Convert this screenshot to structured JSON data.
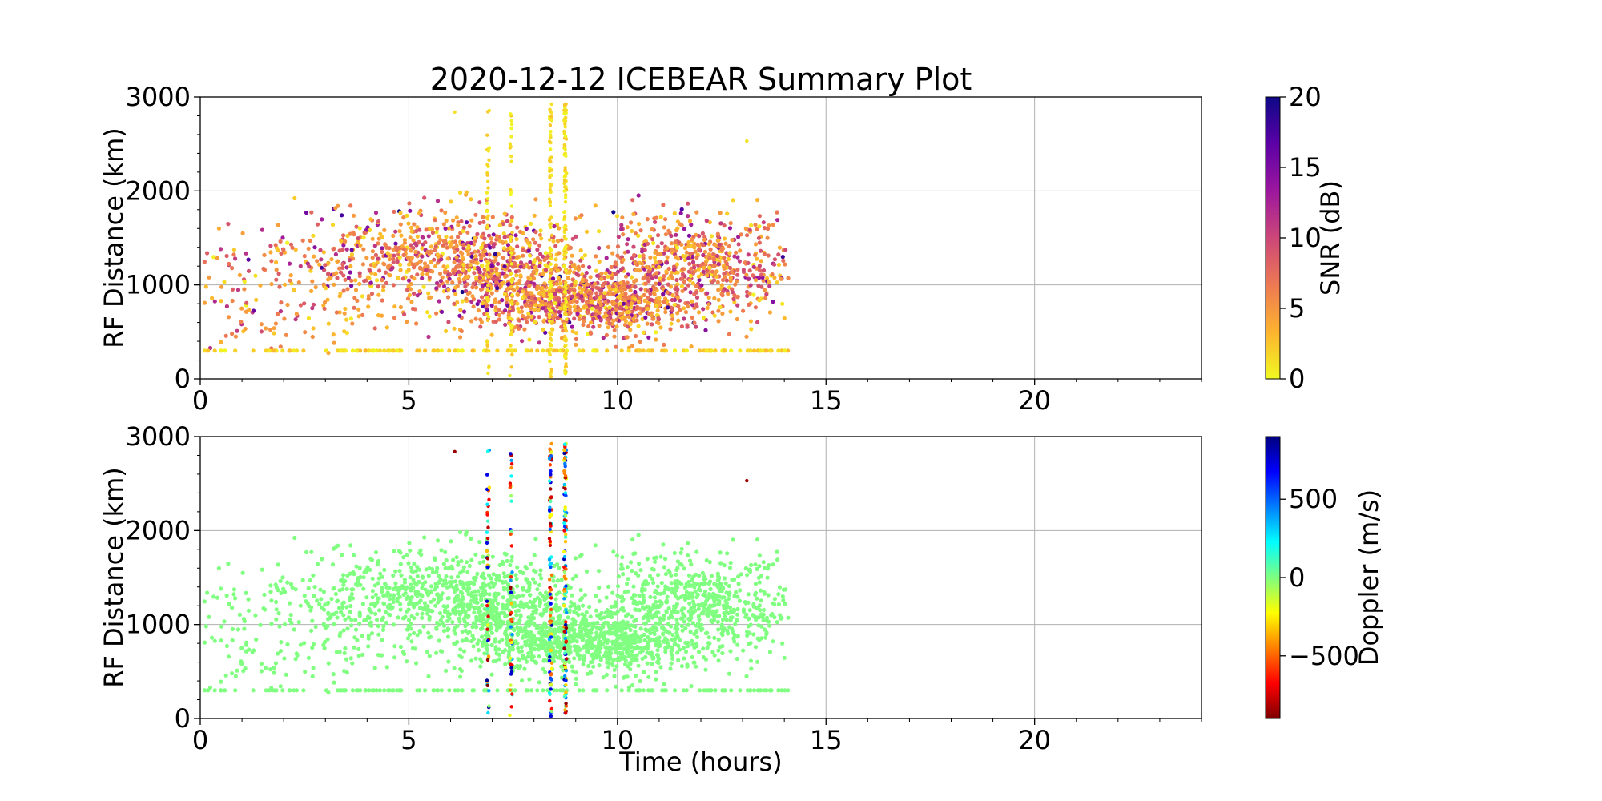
{
  "chart_data": [
    {
      "type": "scatter",
      "title": "2020-12-12 ICEBEAR Summary Plot",
      "ylabel": "RF Distance (km)",
      "xlabel": "",
      "xlim": [
        0,
        24
      ],
      "ylim": [
        0,
        3000
      ],
      "xticks": [
        0,
        5,
        10,
        15,
        20
      ],
      "yticks": [
        0,
        1000,
        2000,
        3000
      ],
      "grid": true,
      "colorbar": {
        "label": "SNR (dB)",
        "range": [
          0,
          20
        ],
        "ticks": [
          0,
          5,
          10,
          15,
          20
        ],
        "colormap": "plasma_r",
        "stops": [
          "#f0f921",
          "#fdb32f",
          "#ed7953",
          "#cc4778",
          "#9c179e",
          "#5c01a6",
          "#0d0887"
        ]
      },
      "data_extent": {
        "t_start": 0,
        "t_end": 14.1
      },
      "clusters": [
        {
          "t_center": 6.8,
          "t_spread": 1.2,
          "r_center": 1250,
          "r_spread": 280,
          "weight": 0.22
        },
        {
          "t_center": 8.5,
          "t_spread": 1.0,
          "r_center": 850,
          "r_spread": 160,
          "weight": 0.22
        },
        {
          "t_center": 12.0,
          "t_spread": 1.2,
          "r_center": 1200,
          "r_spread": 300,
          "weight": 0.26
        },
        {
          "t_center": 4.5,
          "t_spread": 1.2,
          "r_center": 1300,
          "r_spread": 280,
          "weight": 0.12
        },
        {
          "t_center": 10.2,
          "t_spread": 0.7,
          "r_center": 750,
          "r_spread": 150,
          "weight": 0.1
        },
        {
          "t_center": 2.0,
          "t_spread": 1.5,
          "r_center": 1000,
          "r_spread": 400,
          "weight": 0.08
        }
      ],
      "baseline_range_km": 300,
      "vertical_streaks_hours": [
        6.9,
        7.45,
        8.4,
        8.75
      ]
    },
    {
      "type": "scatter",
      "title": "",
      "ylabel": "RF Distance (km)",
      "xlabel": "Time (hours)",
      "xlim": [
        0,
        24
      ],
      "ylim": [
        0,
        3000
      ],
      "xticks": [
        0,
        5,
        10,
        15,
        20
      ],
      "yticks": [
        0,
        1000,
        2000,
        3000
      ],
      "grid": true,
      "colorbar": {
        "label": "Doppler (m/s)",
        "range": [
          -900,
          900
        ],
        "ticks": [
          -500,
          0,
          500
        ],
        "tick_labels": [
          "−500",
          "0",
          "500"
        ],
        "colormap": "jet_r",
        "stops": [
          "#7f0000",
          "#ff0000",
          "#ff7f00",
          "#ffff00",
          "#7fff7f",
          "#00ffff",
          "#007fff",
          "#0000ff",
          "#00007f"
        ]
      },
      "data_extent": {
        "t_start": 0,
        "t_end": 14.1
      },
      "baseline_range_km": 300,
      "vertical_streaks_hours": [
        6.9,
        7.45,
        8.4,
        8.75
      ],
      "main_point_color": "#80ff80"
    }
  ]
}
